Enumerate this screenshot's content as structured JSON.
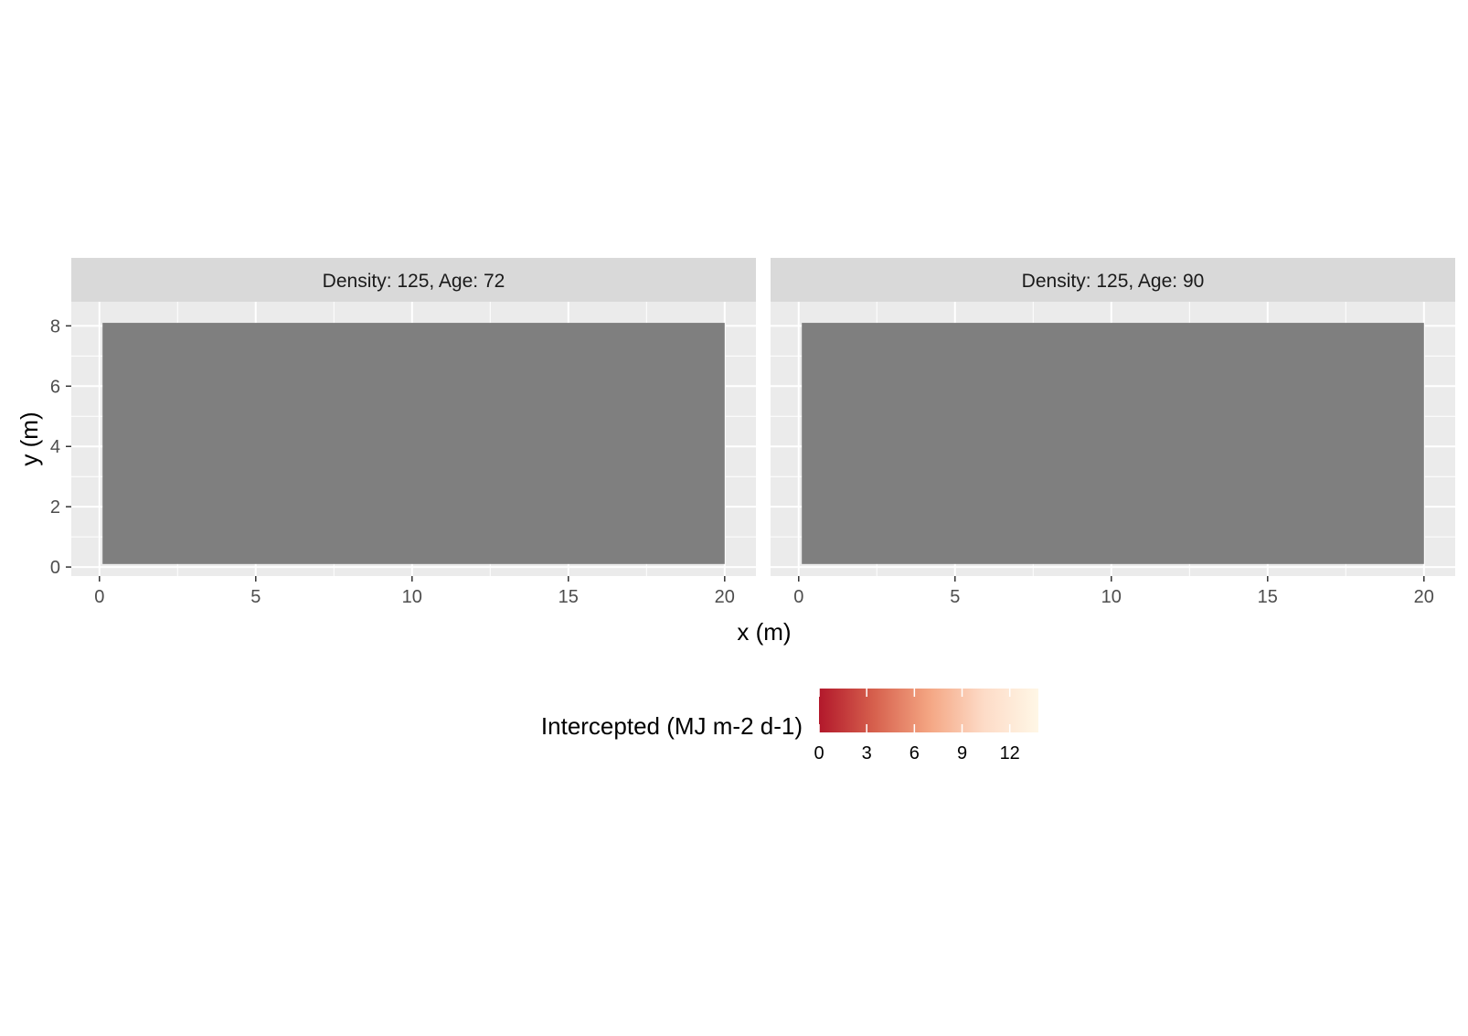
{
  "chart_data": {
    "type": "heatmap",
    "facet_strip_labels": [
      "Density: 125, Age: 72",
      "Density: 125, Age: 90"
    ],
    "xlabel": "x (m)",
    "ylabel": "y (m)",
    "xlim": [
      -0.9,
      21
    ],
    "ylim": [
      -0.3,
      8.8
    ],
    "x_ticks": [
      0,
      5,
      10,
      15,
      20
    ],
    "x_tick_labels": [
      "0",
      "5",
      "10",
      "15",
      "20"
    ],
    "y_ticks": [
      0,
      2,
      4,
      6,
      8
    ],
    "y_tick_labels": [
      "0",
      "2",
      "4",
      "6",
      "8"
    ],
    "grid": true,
    "panels": [
      {
        "strip": "Density: 125, Age: 72",
        "fill_color": "#7f7f7f",
        "tile_x": [
          0.1,
          20
        ],
        "tile_y": [
          0.1,
          8.1
        ]
      },
      {
        "strip": "Density: 125, Age: 90",
        "fill_color": "#7f7f7f",
        "tile_x": [
          0.1,
          20
        ],
        "tile_y": [
          0.1,
          8.1
        ]
      }
    ],
    "legend": {
      "title": "Intercepted (MJ m-2 d-1)",
      "position": "bottom",
      "range": [
        0,
        13.8
      ],
      "ticks": [
        0,
        3,
        6,
        9,
        12
      ],
      "tick_labels": [
        "0",
        "3",
        "6",
        "9",
        "12"
      ],
      "colors": [
        "#b2182b",
        "#d6604d",
        "#f4a582",
        "#fddbc7",
        "#fff7e6"
      ]
    },
    "panel_background": "#ebebeb",
    "strip_background": "#d9d9d9"
  }
}
